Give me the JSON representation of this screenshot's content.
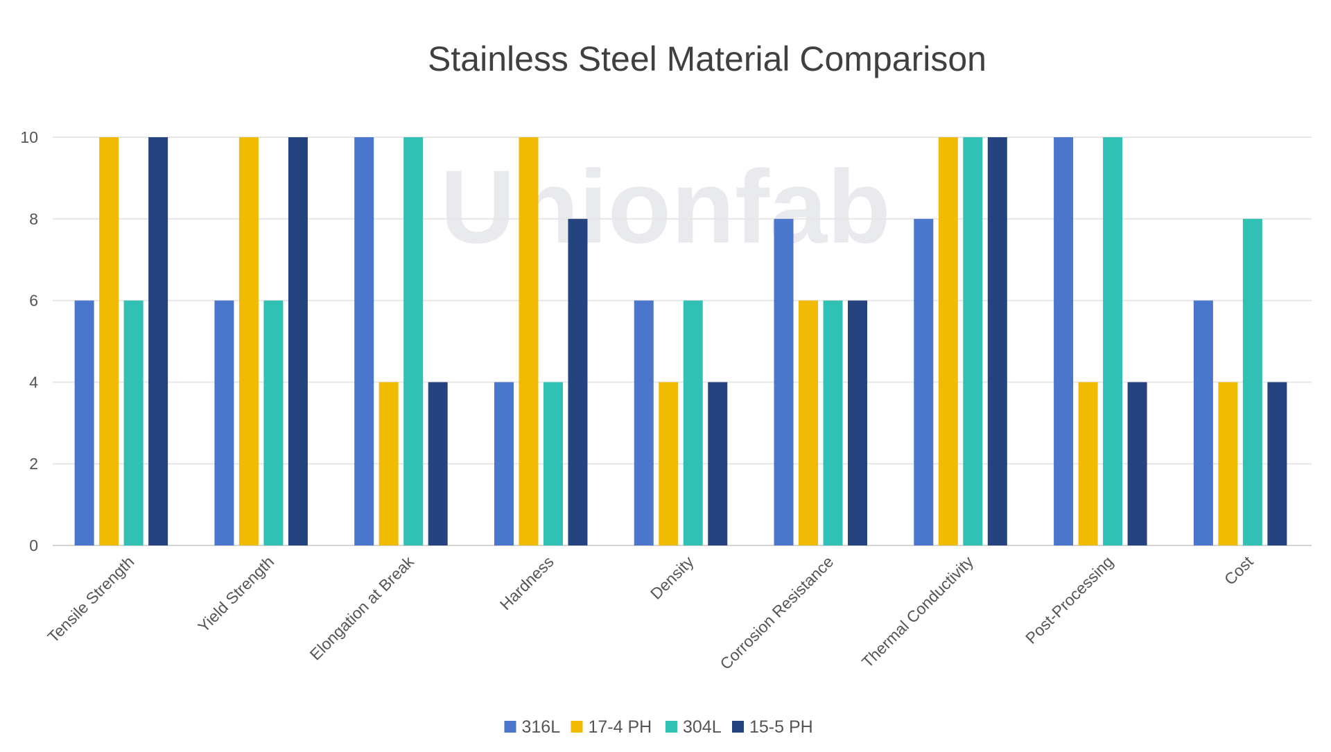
{
  "chart_data": {
    "type": "bar",
    "title": "Stainless Steel Material Comparison",
    "xlabel": "",
    "ylabel": "",
    "ylim": [
      0,
      10
    ],
    "yticks": [
      0,
      2,
      4,
      6,
      8,
      10
    ],
    "grid": true,
    "legend_position": "bottom",
    "categories": [
      "Tensile Strength",
      "Yield Strength",
      "Elongation at Break",
      "Hardness",
      "Density",
      "Corrosion Resistance",
      "Thermal Conductivity",
      "Post-Processing",
      "Cost"
    ],
    "series": [
      {
        "name": "316L",
        "color": "#4a76cc",
        "values": [
          6,
          6,
          10,
          4,
          6,
          8,
          8,
          10,
          6
        ]
      },
      {
        "name": "17-4 PH",
        "color": "#f2bb03",
        "values": [
          10,
          10,
          4,
          10,
          4,
          6,
          10,
          4,
          4
        ]
      },
      {
        "name": "304L",
        "color": "#31c0b4",
        "values": [
          6,
          6,
          10,
          4,
          6,
          6,
          10,
          10,
          8
        ]
      },
      {
        "name": "15-5 PH",
        "color": "#25437f",
        "values": [
          10,
          10,
          4,
          8,
          4,
          6,
          10,
          4,
          4
        ]
      }
    ]
  },
  "watermark": "Unionfab"
}
